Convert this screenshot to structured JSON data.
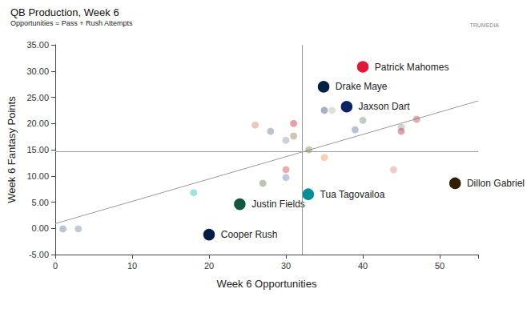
{
  "chart_data": {
    "type": "scatter",
    "title": "QB Production, Week 6",
    "subtitle": "Opportunities = Pass + Rush Attempts",
    "logo_text": "TRUMEDIA",
    "x_label": "Week 6 Opportunities",
    "y_label": "Week 6 Fantasy Points",
    "marker": "circle",
    "grid": false,
    "xlim": [
      0,
      55
    ],
    "xticks": [
      0,
      10,
      20,
      30,
      40,
      50
    ],
    "ylim": [
      -5,
      35
    ],
    "yticks": [
      {
        "value": -5,
        "label": "-5.00"
      },
      {
        "value": 0,
        "label": "0.00"
      },
      {
        "value": 5,
        "label": "5.00"
      },
      {
        "value": 10,
        "label": "10.00"
      },
      {
        "value": 15,
        "label": "15.00"
      },
      {
        "value": 20,
        "label": "20.00"
      },
      {
        "value": 25,
        "label": "25.00"
      },
      {
        "value": 30,
        "label": "30.00"
      },
      {
        "value": 35,
        "label": "35.00"
      }
    ],
    "mean_x": 32.1,
    "mean_y": 14.7,
    "trend_line": {
      "x": [
        0,
        55
      ],
      "values": [
        0.9,
        24.3
      ]
    },
    "x": [
      40,
      34.9,
      37.9,
      52,
      32.9,
      24,
      20,
      1,
      3,
      18,
      26,
      28,
      31,
      30,
      31,
      30,
      30,
      27,
      33,
      35,
      35,
      36,
      40,
      39,
      45,
      45,
      47,
      44
    ],
    "values": [
      30.8,
      27,
      23.2,
      8.6,
      6.5,
      4.6,
      -1.2,
      -0.1,
      -0.1,
      6.8,
      19.7,
      18.5,
      20,
      16.8,
      17.6,
      11.2,
      9.7,
      8.6,
      15,
      13.5,
      22.5,
      22.5,
      20.6,
      18.8,
      19.3,
      18.5,
      20.8,
      11.2
    ],
    "labels": [
      "Patrick Mahomes",
      "Drake Maye",
      "Jaxson Dart",
      "Dillon Gabriel",
      "Tua Tagovailoa",
      "Justin Fields",
      "Cooper Rush",
      null,
      null,
      null,
      null,
      null,
      null,
      null,
      null,
      null,
      null,
      null,
      null,
      null,
      null,
      null,
      null,
      null,
      null,
      null,
      null,
      null
    ],
    "colors": [
      "#e31837",
      "#002244",
      "#0b2265",
      "#311d00",
      "#008e97",
      "#125740",
      "#041e42",
      "#4f6d8a",
      "#6a7a8c",
      "#12b5b5",
      "#d8704e",
      "#5b6f7a",
      "#c8102e",
      "#7b8fa8",
      "#8a6d3b",
      "#c0392b",
      "#5a78b8",
      "#556b2f",
      "#6b7b3a",
      "#f08a4b",
      "#203a72",
      "#b0b7a8",
      "#5e7d6e",
      "#4b6a9b",
      "#8e8e8e",
      "#9b2335",
      "#a23b4a",
      "#e07a6a"
    ]
  }
}
